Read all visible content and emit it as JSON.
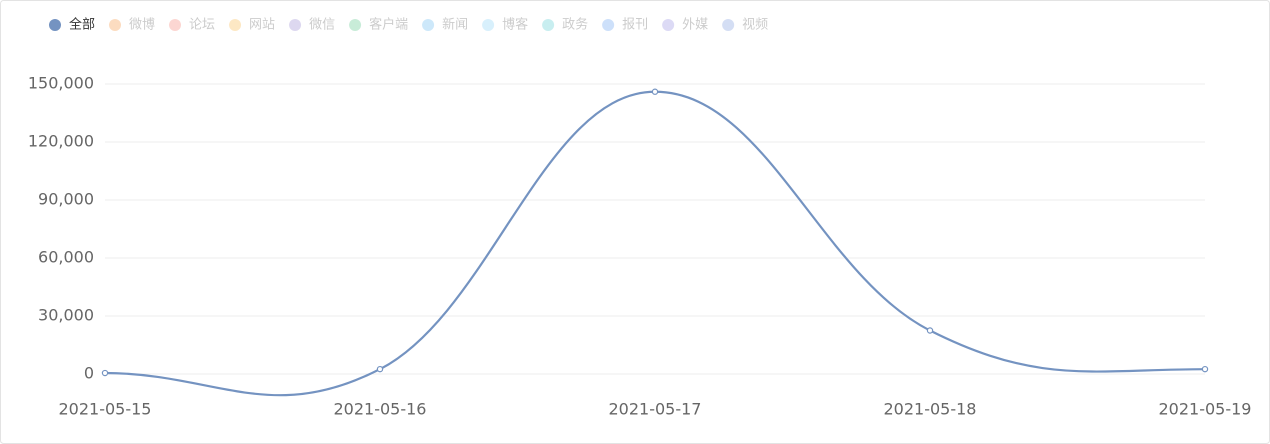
{
  "chart_data": {
    "type": "line",
    "x": [
      "2021-05-15",
      "2021-05-16",
      "2021-05-17",
      "2021-05-18",
      "2021-05-19"
    ],
    "series": [
      {
        "name": "全部",
        "color": "#7493c1",
        "values": [
          500,
          2500,
          146000,
          22500,
          2500
        ]
      }
    ],
    "inactive_legend": [
      {
        "name": "微博",
        "color": "#fcdcc0"
      },
      {
        "name": "论坛",
        "color": "#fcd6d2"
      },
      {
        "name": "网站",
        "color": "#fde8c4"
      },
      {
        "name": "微信",
        "color": "#ddd8f0"
      },
      {
        "name": "客户端",
        "color": "#c8ecd8"
      },
      {
        "name": "新闻",
        "color": "#cde8fa"
      },
      {
        "name": "博客",
        "color": "#d8f0fc"
      },
      {
        "name": "政务",
        "color": "#c8eef0"
      },
      {
        "name": "报刊",
        "color": "#cde0fa"
      },
      {
        "name": "外媒",
        "color": "#dcdaf5"
      },
      {
        "name": "视频",
        "color": "#d4def4"
      }
    ],
    "ylim": [
      0,
      150000
    ],
    "yticks": [
      0,
      {
        "value": 30000,
        "label": "30,000"
      },
      {
        "value": 60000,
        "label": "60,000"
      },
      {
        "value": 90000,
        "label": "90,000"
      },
      {
        "value": 120000,
        "label": "120,000"
      },
      {
        "value": 150000,
        "label": "150,000"
      }
    ],
    "grid": true
  }
}
